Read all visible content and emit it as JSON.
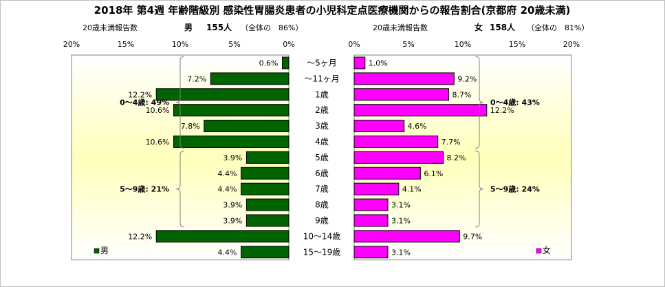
{
  "chart_data": {
    "type": "bar",
    "title": "2018年 第4週 年齢階級別 感染性胃腸炎患者の小児科定点医療機関からの報告割合(京都府 20歳未満)",
    "categories": [
      "～5ヶ月",
      "～11ヶ月",
      "1歳",
      "2歳",
      "3歳",
      "4歳",
      "5歳",
      "6歳",
      "7歳",
      "8歳",
      "9歳",
      "10～14歳",
      "15～19歳"
    ],
    "left_panel": {
      "header_label": "20歳未満報告数",
      "header_sex": "男",
      "header_count": "155人",
      "header_share": "（全体の　86%）",
      "tick_labels": [
        "20%",
        "15%",
        "10%",
        "5%",
        "0%"
      ],
      "xlim": [
        0,
        20
      ],
      "legend": "男",
      "color": "#006400",
      "series": [
        {
          "name": "男",
          "values": [
            0.6,
            7.2,
            12.2,
            10.6,
            7.8,
            10.6,
            3.9,
            4.4,
            4.4,
            3.9,
            3.9,
            12.2,
            4.4
          ]
        }
      ],
      "value_labels": [
        "0.6%",
        "7.2%",
        "12.2%",
        "10.6%",
        "7.8%",
        "10.6%",
        "3.9%",
        "4.4%",
        "4.4%",
        "3.9%",
        "3.9%",
        "12.2%",
        "4.4%"
      ],
      "groups": [
        {
          "label": "0～4歳: 49%",
          "from": 0,
          "to": 5
        },
        {
          "label": "5～9歳: 21%",
          "from": 6,
          "to": 10
        }
      ]
    },
    "right_panel": {
      "header_label": "20歳未満報告数",
      "header_sex": "女",
      "header_count": "158人",
      "header_share": "（全体の　81%）",
      "tick_labels": [
        "0%",
        "5%",
        "10%",
        "15%",
        "20%"
      ],
      "xlim": [
        0,
        20
      ],
      "legend": "女",
      "color": "#ff00ff",
      "series": [
        {
          "name": "女",
          "values": [
            1.0,
            9.2,
            8.7,
            12.2,
            4.6,
            7.7,
            8.2,
            6.1,
            4.1,
            3.1,
            3.1,
            9.7,
            3.1
          ]
        }
      ],
      "value_labels": [
        "1.0%",
        "9.2%",
        "8.7%",
        "12.2%",
        "4.6%",
        "7.7%",
        "8.2%",
        "6.1%",
        "4.1%",
        "3.1%",
        "3.1%",
        "9.7%",
        "3.1%"
      ],
      "groups": [
        {
          "label": "0～4歳: 43%",
          "from": 0,
          "to": 5
        },
        {
          "label": "5～9歳: 24%",
          "from": 6,
          "to": 10
        }
      ]
    }
  }
}
